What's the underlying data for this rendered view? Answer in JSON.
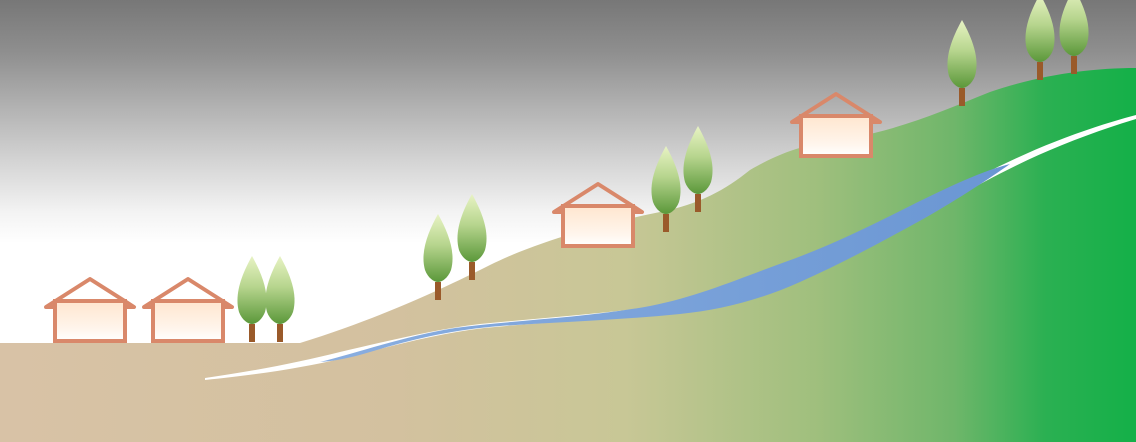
{
  "scene": {
    "description_items": [
      "house",
      "tree",
      "river",
      "hillside"
    ],
    "colors": {
      "sky_top": "#7a7a7a",
      "sky_bottom": "#ffffff",
      "ground_low": "#d8c2a6",
      "ground_mid": "#c9c597",
      "ground_high": "#73b86a",
      "ground_peak": "#13b047",
      "river": "#7aa2d8",
      "river_edge": "#ffffff",
      "house_outline": "#d9886a",
      "house_fill_top": "#ffe9d6",
      "house_fill_bottom": "#ffffff",
      "tree_trunk": "#9a5a2a",
      "tree_foliage_dark": "#5f9c3c",
      "tree_foliage_light": "#e8f3c4"
    },
    "houses": 4,
    "trees": 9
  }
}
